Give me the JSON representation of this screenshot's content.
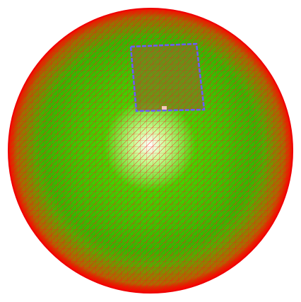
{
  "viewport": {
    "background_color": "#ffffff",
    "mesh_edge_color": "#ff1a1a",
    "sphere_center_color": "#ffffff",
    "sphere_mid_color": "#44d400",
    "sphere_rim_color": "#c8d000",
    "selection_fill_color": "#7a7f1e",
    "selection_outline_color": "#6a5cff",
    "selection_marker_color": "#f4c8b8"
  }
}
